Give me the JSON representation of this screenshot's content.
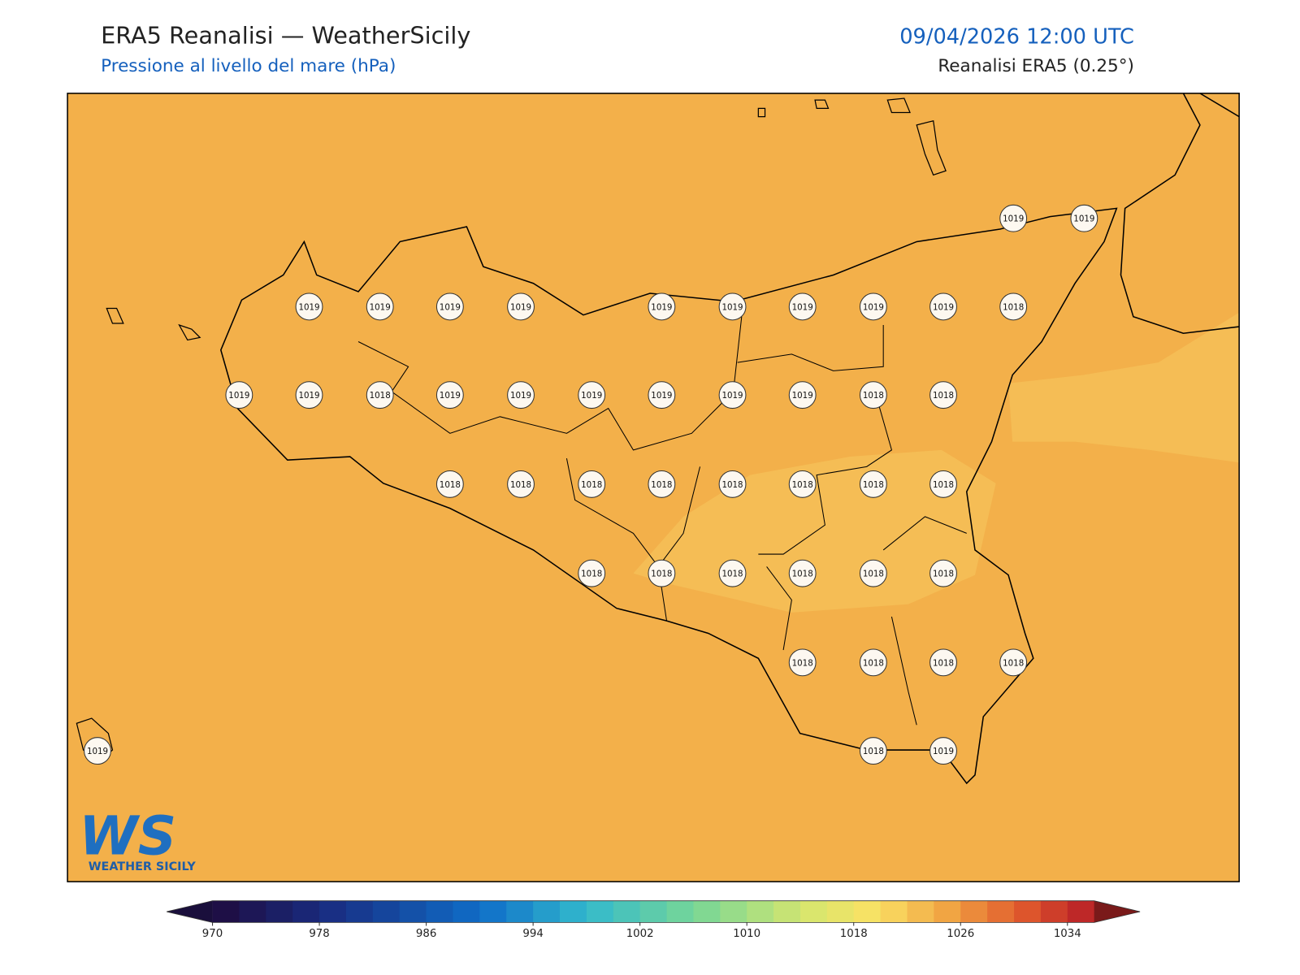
{
  "header": {
    "title": "ERA5 Reanalisi — WeatherSicily",
    "subtitle": "Pressione al livello del mare (hPa)",
    "datetime": "09/04/2026 12:00 UTC",
    "source": "Reanalisi ERA5 (0.25°)"
  },
  "map": {
    "labels": [
      1019,
      1019,
      1019,
      1019,
      1019,
      1019,
      1019,
      1019,
      1019,
      1019,
      1019,
      1018,
      1019,
      1019,
      1018,
      1019,
      1019,
      1019,
      1019,
      1019,
      1019,
      1018,
      1018,
      1018,
      1018,
      1018,
      1018,
      1018,
      1018,
      1018,
      1018,
      1018,
      1018,
      1018,
      1018,
      1018,
      1018,
      1018,
      1018,
      1018,
      1018,
      1018,
      1019,
      1019
    ]
  },
  "logo": {
    "mark": "WS",
    "text": "WEATHER SICILY"
  },
  "colorbar": {
    "lim": [
      970,
      1036
    ],
    "ticks": [
      970,
      978,
      986,
      994,
      1002,
      1010,
      1018,
      1026,
      1034
    ]
  }
}
